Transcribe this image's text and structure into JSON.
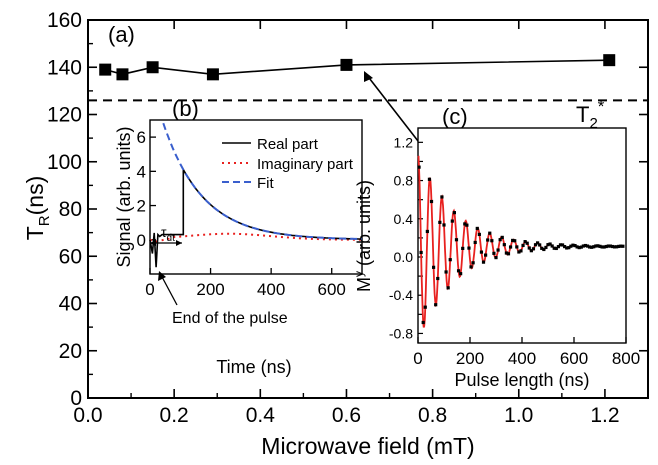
{
  "chart_data": [
    {
      "panel": "(a)",
      "type": "line",
      "xlabel": "Microwave field (mT)",
      "ylabel_main": "T",
      "ylabel_sub": "R",
      "ylabel_tail": "(ns)",
      "xlim": [
        0.0,
        1.3
      ],
      "ylim": [
        0,
        160
      ],
      "xticks": [
        "0.0",
        "0.2",
        "0.4",
        "0.6",
        "0.8",
        "1.0",
        "1.2"
      ],
      "yticks": [
        "0",
        "20",
        "40",
        "60",
        "80",
        "100",
        "120",
        "140",
        "160"
      ],
      "grid": false,
      "series": [
        {
          "marker": "square",
          "color": "#000000",
          "x": [
            0.04,
            0.08,
            0.15,
            0.29,
            0.6,
            1.21
          ],
          "y": [
            139,
            137,
            140,
            137,
            141,
            143
          ]
        }
      ],
      "reference_line": {
        "y": 126,
        "style": "dashed",
        "label_main": "T",
        "label_sub": "2",
        "label_sup": "*"
      }
    },
    {
      "panel": "(b)",
      "type": "line",
      "xlabel": "Time (ns)",
      "ylabel": "Signal (arb. units)",
      "xlim": [
        0,
        700
      ],
      "ylim": [
        -2,
        7
      ],
      "xticks": [
        "0",
        "200",
        "400",
        "600"
      ],
      "yticks": [
        "0",
        "2",
        "4",
        "6"
      ],
      "legend_position": "top-right",
      "series": [
        {
          "name": "Real part",
          "color": "#000000",
          "style": "solid"
        },
        {
          "name": "Imaginary part",
          "color": "#e8211f",
          "style": "dotted"
        },
        {
          "name": "Fit",
          "color": "#3a5fcd",
          "style": "dashed"
        }
      ],
      "decay": {
        "start": 110,
        "amplitude": 4.1,
        "tau": 130
      },
      "annotations": {
        "tau_main": "τ",
        "tau_sub": "dt",
        "end_of_pulse": "End of the pulse"
      }
    },
    {
      "panel": "(c)",
      "type": "line",
      "xlabel": "Pulse length (ns)",
      "ylabel_main": "M",
      "ylabel_sup": "y",
      "ylabel_tail": " (arb. units)",
      "xlim": [
        0,
        800
      ],
      "ylim": [
        -0.9,
        1.35
      ],
      "xticks": [
        "0",
        "200",
        "400",
        "600",
        "800"
      ],
      "yticks": [
        "-0.8",
        "-0.6",
        "-0.4",
        "-0.2",
        "0.0",
        "0.2",
        "0.4",
        "0.6",
        "0.8",
        "1.0",
        "1.2"
      ],
      "oscillation": {
        "period": 46,
        "decay_time": 140,
        "amplitude": 1.0,
        "offset": 0.11
      },
      "colors": {
        "fit": "#e8211f",
        "data": "#000000"
      }
    }
  ]
}
